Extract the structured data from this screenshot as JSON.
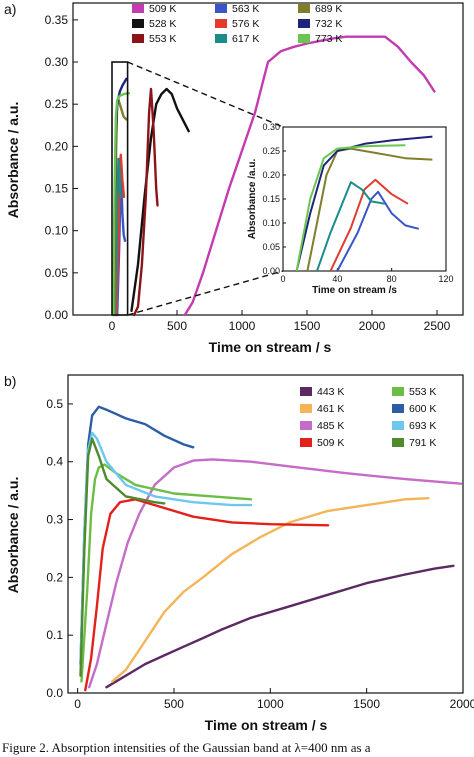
{
  "figure": {
    "caption": "Figure 2. Absorption intensities of the Gaussian band at λ=400 nm as a"
  },
  "chart_data": [
    {
      "panel_label": "a)",
      "type": "line",
      "xlabel": "Time on stream / s",
      "ylabel": "Absorbance / a.u.",
      "xlim": [
        -300,
        2700
      ],
      "ylim": [
        0,
        0.37
      ],
      "xticks": [
        0,
        500,
        1000,
        1500,
        2000,
        2500
      ],
      "yticks": [
        0.0,
        0.05,
        0.1,
        0.15,
        0.2,
        0.25,
        0.3,
        0.35
      ],
      "legend_position": "top",
      "legend_columns": 3,
      "series": [
        {
          "name": "509 K",
          "color": "#c23bb0",
          "points": [
            [
              560,
              0.0
            ],
            [
              620,
              0.015
            ],
            [
              700,
              0.05
            ],
            [
              800,
              0.1
            ],
            [
              900,
              0.15
            ],
            [
              1000,
              0.195
            ],
            [
              1100,
              0.24
            ],
            [
              1200,
              0.3
            ],
            [
              1300,
              0.313
            ],
            [
              1400,
              0.318
            ],
            [
              1500,
              0.322
            ],
            [
              1600,
              0.325
            ],
            [
              1700,
              0.328
            ],
            [
              1800,
              0.33
            ],
            [
              1900,
              0.33
            ],
            [
              2000,
              0.33
            ],
            [
              2100,
              0.33
            ],
            [
              2200,
              0.318
            ],
            [
              2300,
              0.3
            ],
            [
              2400,
              0.284
            ],
            [
              2480,
              0.265
            ]
          ]
        },
        {
          "name": "528 K",
          "color": "#111111",
          "points": [
            [
              150,
              0.005
            ],
            [
              200,
              0.06
            ],
            [
              250,
              0.14
            ],
            [
              300,
              0.21
            ],
            [
              340,
              0.25
            ],
            [
              380,
              0.262
            ],
            [
              420,
              0.268
            ],
            [
              460,
              0.262
            ],
            [
              500,
              0.245
            ],
            [
              550,
              0.23
            ],
            [
              590,
              0.218
            ]
          ]
        },
        {
          "name": "553 K",
          "color": "#8b1418",
          "points": [
            [
              170,
              0.0
            ],
            [
              200,
              0.01
            ],
            [
              230,
              0.06
            ],
            [
              260,
              0.14
            ],
            [
              285,
              0.24
            ],
            [
              300,
              0.268
            ],
            [
              320,
              0.22
            ],
            [
              340,
              0.15
            ],
            [
              350,
              0.13
            ]
          ]
        },
        {
          "name": "563 K",
          "color": "#3b55c6",
          "points": [
            [
              40,
              0.0
            ],
            [
              55,
              0.08
            ],
            [
              65,
              0.15
            ],
            [
              70,
              0.165
            ],
            [
              80,
              0.12
            ],
            [
              90,
              0.095
            ],
            [
              100,
              0.088
            ]
          ]
        },
        {
          "name": "576 K",
          "color": "#e23b2e",
          "points": [
            [
              35,
              0.0
            ],
            [
              50,
              0.09
            ],
            [
              60,
              0.17
            ],
            [
              68,
              0.19
            ],
            [
              80,
              0.16
            ],
            [
              92,
              0.14
            ]
          ]
        },
        {
          "name": "617 K",
          "color": "#1a8c8a",
          "points": [
            [
              25,
              0.0
            ],
            [
              35,
              0.08
            ],
            [
              45,
              0.15
            ],
            [
              50,
              0.185
            ],
            [
              58,
              0.17
            ],
            [
              65,
              0.145
            ],
            [
              75,
              0.14
            ]
          ]
        },
        {
          "name": "689 K",
          "color": "#7f7e2b",
          "points": [
            [
              18,
              0.0
            ],
            [
              25,
              0.1
            ],
            [
              32,
              0.2
            ],
            [
              40,
              0.25
            ],
            [
              50,
              0.255
            ],
            [
              70,
              0.245
            ],
            [
              90,
              0.235
            ],
            [
              110,
              0.232
            ]
          ]
        },
        {
          "name": "732 K",
          "color": "#1f247a",
          "points": [
            [
              10,
              0.0
            ],
            [
              20,
              0.12
            ],
            [
              30,
              0.22
            ],
            [
              40,
              0.25
            ],
            [
              60,
              0.265
            ],
            [
              80,
              0.272
            ],
            [
              110,
              0.28
            ]
          ]
        },
        {
          "name": "773 K",
          "color": "#6ac64e",
          "points": [
            [
              10,
              0.0
            ],
            [
              20,
              0.15
            ],
            [
              30,
              0.235
            ],
            [
              40,
              0.255
            ],
            [
              60,
              0.26
            ],
            [
              90,
              0.262
            ],
            [
              130,
              0.263
            ]
          ]
        }
      ],
      "inset": {
        "xlabel": "Time on stream /s",
        "ylabel": "Absorbance /a.u.",
        "xlim": [
          0,
          120
        ],
        "ylim": [
          0,
          0.3
        ],
        "xticks": [
          0,
          40,
          80,
          120
        ],
        "yticks": [
          0.0,
          0.05,
          0.1,
          0.15,
          0.2,
          0.25,
          0.3
        ]
      },
      "zoom_box": {
        "x": [
          0,
          120
        ],
        "y": [
          0,
          0.3
        ]
      }
    },
    {
      "panel_label": "b)",
      "type": "line",
      "xlabel": "Time on stream / s",
      "ylabel": "Absorbance / a.u.",
      "xlim": [
        -50,
        2000
      ],
      "ylim": [
        0,
        0.55
      ],
      "xticks": [
        0,
        500,
        1000,
        1500,
        2000
      ],
      "yticks": [
        0.0,
        0.1,
        0.2,
        0.3,
        0.4,
        0.5
      ],
      "legend_position": "top-right",
      "legend_columns": 2,
      "series": [
        {
          "name": "443 K",
          "color": "#5b2a63",
          "points": [
            [
              150,
              0.01
            ],
            [
              250,
              0.03
            ],
            [
              350,
              0.05
            ],
            [
              450,
              0.065
            ],
            [
              550,
              0.08
            ],
            [
              650,
              0.095
            ],
            [
              750,
              0.11
            ],
            [
              900,
              0.13
            ],
            [
              1100,
              0.15
            ],
            [
              1300,
              0.17
            ],
            [
              1500,
              0.19
            ],
            [
              1700,
              0.205
            ],
            [
              1850,
              0.215
            ],
            [
              1950,
              0.22
            ]
          ]
        },
        {
          "name": "461 K",
          "color": "#f4b458",
          "points": [
            [
              180,
              0.02
            ],
            [
              250,
              0.04
            ],
            [
              350,
              0.09
            ],
            [
              450,
              0.14
            ],
            [
              550,
              0.175
            ],
            [
              650,
              0.2
            ],
            [
              800,
              0.24
            ],
            [
              950,
              0.27
            ],
            [
              1100,
              0.295
            ],
            [
              1300,
              0.315
            ],
            [
              1500,
              0.325
            ],
            [
              1700,
              0.335
            ],
            [
              1820,
              0.337
            ]
          ]
        },
        {
          "name": "485 K",
          "color": "#c56cc8",
          "points": [
            [
              60,
              0.01
            ],
            [
              100,
              0.05
            ],
            [
              150,
              0.12
            ],
            [
              200,
              0.19
            ],
            [
              260,
              0.26
            ],
            [
              320,
              0.31
            ],
            [
              400,
              0.36
            ],
            [
              500,
              0.39
            ],
            [
              600,
              0.402
            ],
            [
              700,
              0.404
            ],
            [
              900,
              0.4
            ],
            [
              1100,
              0.392
            ],
            [
              1400,
              0.38
            ],
            [
              1700,
              0.37
            ],
            [
              1990,
              0.362
            ]
          ]
        },
        {
          "name": "509 K",
          "color": "#e2201c",
          "points": [
            [
              40,
              0.005
            ],
            [
              70,
              0.06
            ],
            [
              100,
              0.15
            ],
            [
              130,
              0.25
            ],
            [
              170,
              0.31
            ],
            [
              220,
              0.33
            ],
            [
              300,
              0.335
            ],
            [
              400,
              0.325
            ],
            [
              600,
              0.305
            ],
            [
              800,
              0.295
            ],
            [
              1000,
              0.292
            ],
            [
              1300,
              0.29
            ]
          ]
        },
        {
          "name": "553 K",
          "color": "#6cbd45",
          "points": [
            [
              20,
              0.02
            ],
            [
              50,
              0.18
            ],
            [
              70,
              0.31
            ],
            [
              90,
              0.37
            ],
            [
              110,
              0.39
            ],
            [
              140,
              0.395
            ],
            [
              200,
              0.38
            ],
            [
              300,
              0.36
            ],
            [
              500,
              0.345
            ],
            [
              700,
              0.34
            ],
            [
              900,
              0.335
            ]
          ]
        },
        {
          "name": "600 K",
          "color": "#2d5ea5",
          "points": [
            [
              15,
              0.05
            ],
            [
              35,
              0.28
            ],
            [
              55,
              0.43
            ],
            [
              75,
              0.48
            ],
            [
              110,
              0.495
            ],
            [
              150,
              0.49
            ],
            [
              250,
              0.475
            ],
            [
              350,
              0.465
            ],
            [
              450,
              0.445
            ],
            [
              550,
              0.43
            ],
            [
              600,
              0.425
            ]
          ]
        },
        {
          "name": "693 K",
          "color": "#6cc8ee",
          "points": [
            [
              15,
              0.05
            ],
            [
              35,
              0.28
            ],
            [
              55,
              0.42
            ],
            [
              75,
              0.45
            ],
            [
              100,
              0.44
            ],
            [
              150,
              0.4
            ],
            [
              250,
              0.36
            ],
            [
              400,
              0.34
            ],
            [
              600,
              0.33
            ],
            [
              800,
              0.325
            ],
            [
              900,
              0.325
            ]
          ]
        },
        {
          "name": "791 K",
          "color": "#4f8a2c",
          "points": [
            [
              15,
              0.03
            ],
            [
              35,
              0.25
            ],
            [
              55,
              0.41
            ],
            [
              75,
              0.44
            ],
            [
              110,
              0.41
            ],
            [
              150,
              0.37
            ],
            [
              250,
              0.34
            ],
            [
              400,
              0.33
            ],
            [
              450,
              0.328
            ]
          ]
        }
      ]
    }
  ]
}
